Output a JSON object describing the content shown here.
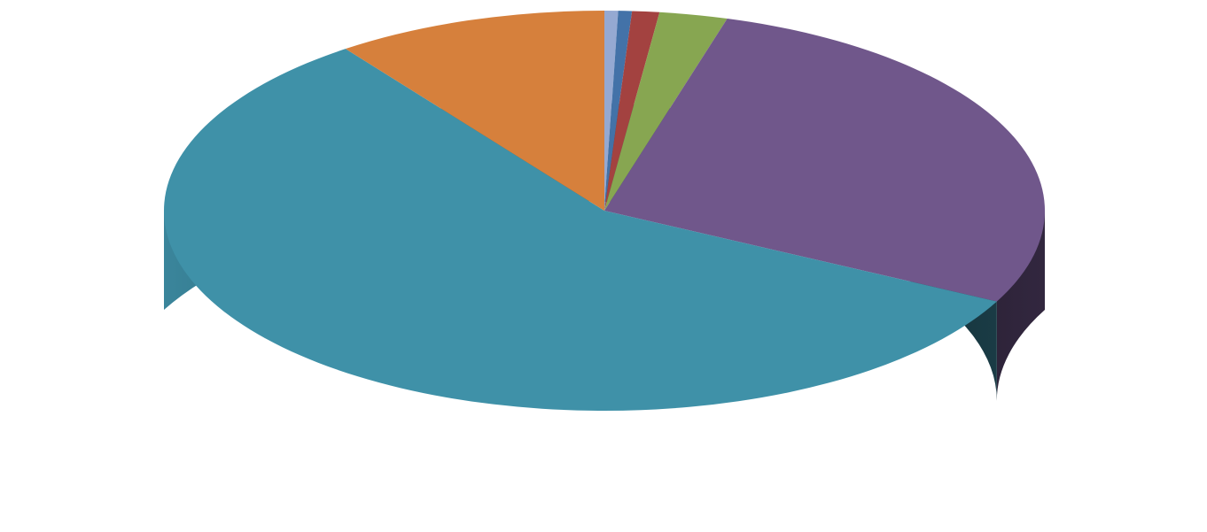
{
  "chart_data": {
    "type": "pie",
    "style": "3d",
    "title": "",
    "legend": "none",
    "start_angle_deg": 90,
    "direction": "clockwise",
    "slices": [
      {
        "value": 0.5,
        "color": "#95A9D2"
      },
      {
        "value": 0.5,
        "color": "#4372A8"
      },
      {
        "value": 1.0,
        "color": "#A34240"
      },
      {
        "value": 2.5,
        "color": "#87A651"
      },
      {
        "value": 28.0,
        "color": "#70578B"
      },
      {
        "value": 57.5,
        "color": "#3F91A8"
      },
      {
        "value": 10.0,
        "color": "#D6803C"
      }
    ]
  }
}
